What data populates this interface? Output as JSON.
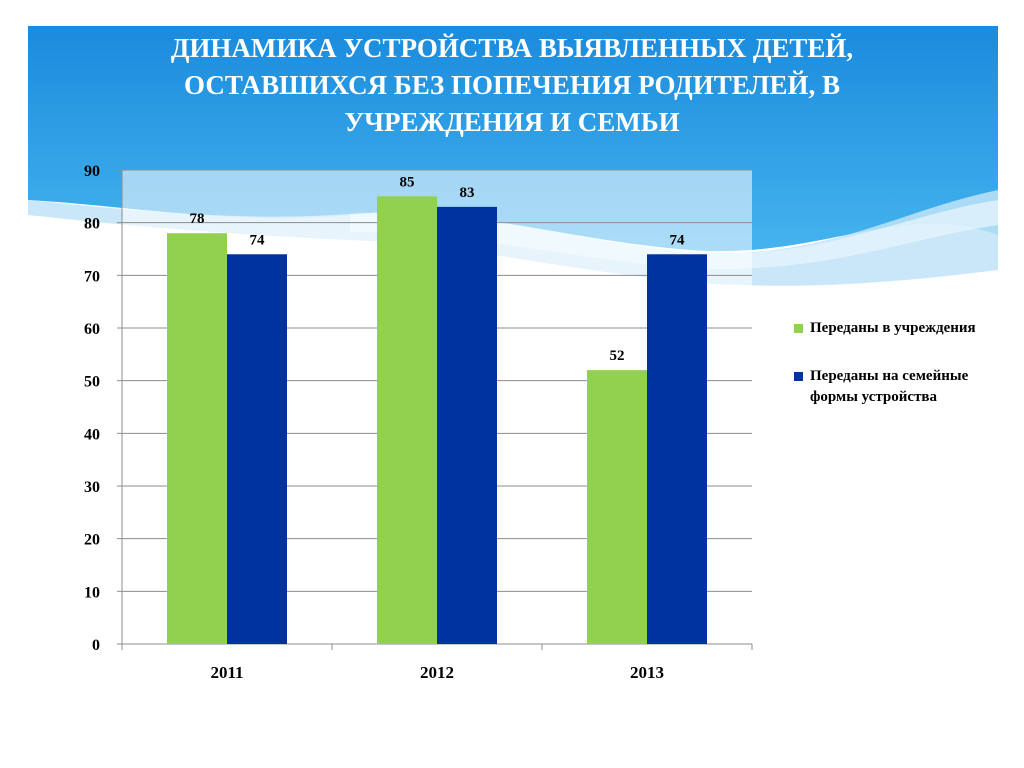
{
  "slide": {
    "title_lines": [
      "ДИНАМИКА УСТРОЙСТВА ВЫЯВЛЕННЫХ ДЕТЕЙ,",
      "ОСТАВШИХСЯ БЕЗ ПОПЕЧЕНИЯ РОДИТЕЛЕЙ,  В",
      "УЧРЕЖДЕНИЯ И СЕМЬИ"
    ],
    "background": {
      "sky_top": "#1E90E0",
      "sky_mid": "#3AA9EA",
      "wave_light": "#BFE3F7"
    }
  },
  "chart_data": {
    "type": "bar",
    "categories": [
      "2011",
      "2012",
      "2013"
    ],
    "series": [
      {
        "name": "Переданы в учреждения",
        "values": [
          78,
          85,
          52
        ],
        "color": "#92D050"
      },
      {
        "name": "Переданы на семейные формы устройства",
        "values": [
          74,
          83,
          74
        ],
        "color": "#0033A0"
      }
    ],
    "ylim": [
      0,
      90
    ],
    "yticks": [
      0,
      10,
      20,
      30,
      40,
      50,
      60,
      70,
      80,
      90
    ],
    "grid": true,
    "data_labels": true,
    "legend_position": "right"
  }
}
